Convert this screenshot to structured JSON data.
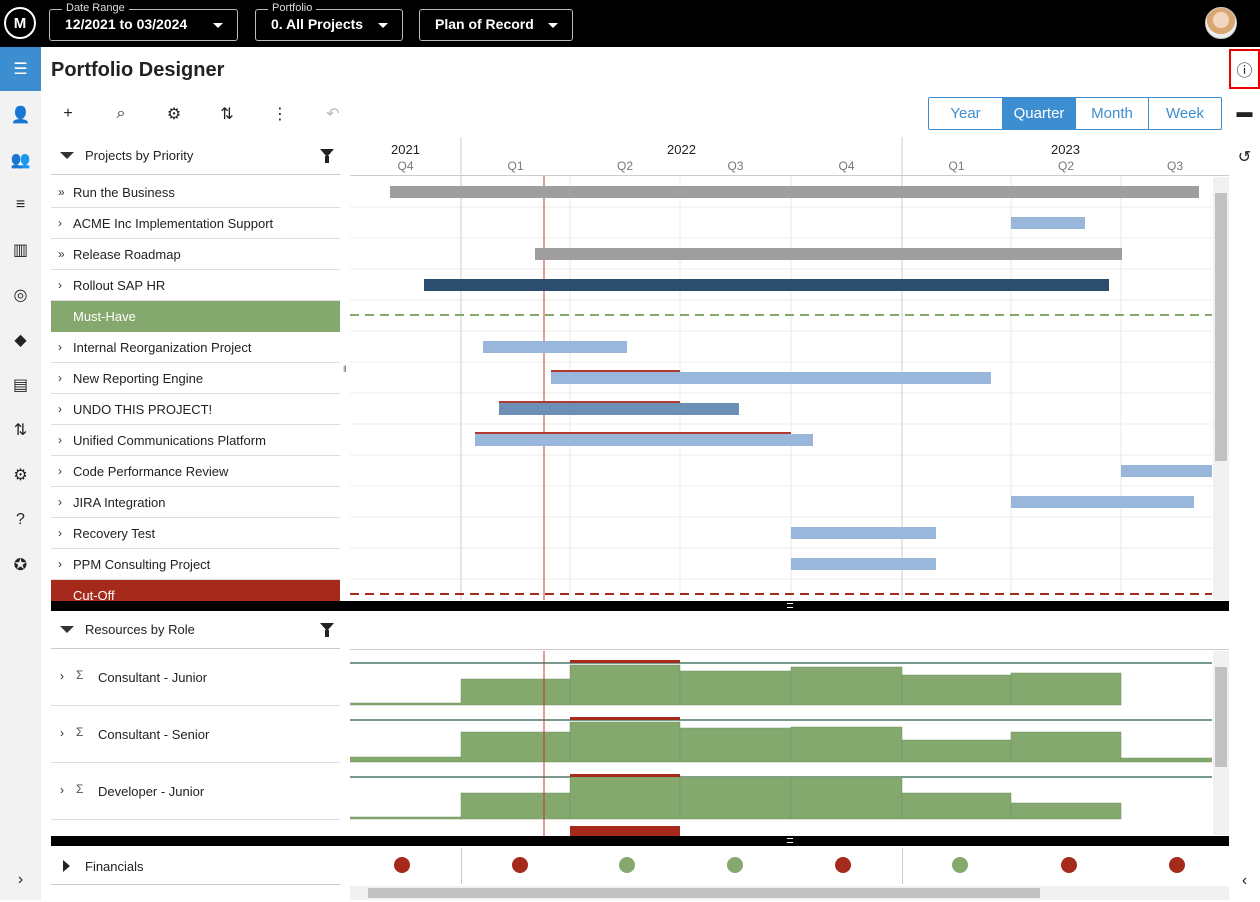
{
  "topbar": {
    "logo_text": "M",
    "date_range": {
      "caption": "Date Range",
      "value": "12/2021 to 03/2024"
    },
    "portfolio": {
      "caption": "Portfolio",
      "value": "0. All Projects"
    },
    "scenario": {
      "value": "Plan of Record"
    }
  },
  "page": {
    "title": "Portfolio Designer"
  },
  "view_toggle": {
    "options": [
      "Year",
      "Quarter",
      "Month",
      "Week"
    ],
    "selected": "Quarter"
  },
  "timeline": {
    "years": [
      {
        "label": "2021"
      },
      {
        "label": "2022"
      },
      {
        "label": "2023"
      }
    ],
    "quarters": [
      "Q4",
      "Q1",
      "Q2",
      "Q3",
      "Q4",
      "Q1",
      "Q2",
      "Q3"
    ]
  },
  "projects_panel": {
    "title": "Projects by Priority"
  },
  "projects": [
    {
      "name": "Run the Business",
      "type": "program"
    },
    {
      "name": "ACME Inc Implementation Support",
      "type": "project"
    },
    {
      "name": "Release Roadmap",
      "type": "program"
    },
    {
      "name": "Rollout SAP HR",
      "type": "project"
    },
    {
      "name": "Must-Have",
      "type": "separator-must"
    },
    {
      "name": "Internal Reorganization Project",
      "type": "project"
    },
    {
      "name": "New Reporting Engine",
      "type": "project"
    },
    {
      "name": "UNDO THIS PROJECT!",
      "type": "project"
    },
    {
      "name": "Unified Communications Platform",
      "type": "project"
    },
    {
      "name": "Code Performance Review",
      "type": "project"
    },
    {
      "name": "JIRA Integration",
      "type": "project"
    },
    {
      "name": "Recovery Test",
      "type": "project"
    },
    {
      "name": "PPM Consulting Project",
      "type": "project"
    },
    {
      "name": "Cut-Off",
      "type": "separator-cut"
    }
  ],
  "resources_panel": {
    "title": "Resources by Role"
  },
  "resources": [
    {
      "name": "Consultant - Junior"
    },
    {
      "name": "Consultant - Senior"
    },
    {
      "name": "Developer - Junior"
    }
  ],
  "financials": {
    "label": "Financials",
    "statuses": [
      "red",
      "red",
      "green",
      "green",
      "red",
      "green",
      "red",
      "red"
    ]
  },
  "colors": {
    "accent": "#3d8ed0",
    "must": "#85a86e",
    "cut": "#a52a1c",
    "bar_light": "#98b7da",
    "bar_mid": "#6c8fb5",
    "bar_dark": "#2c4e6e",
    "bar_grey": "#9e9e9e",
    "capacity": "#85a86e"
  }
}
